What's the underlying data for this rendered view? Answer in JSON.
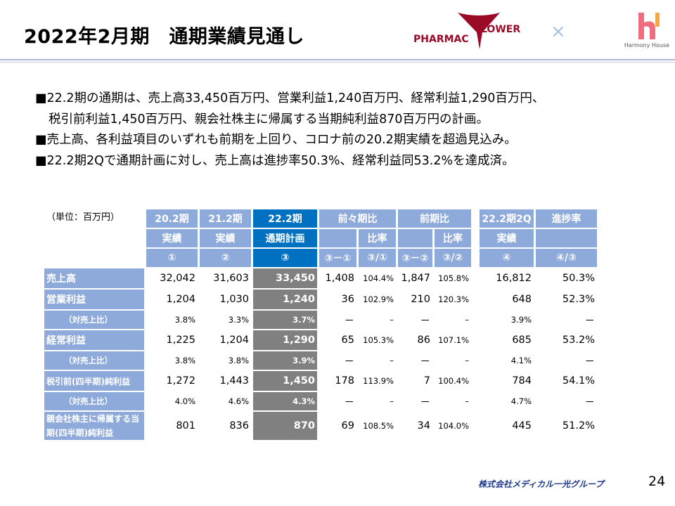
{
  "header": {
    "title": "2022年2月期　通期業績見通し",
    "logo_left": {
      "part1": "PHARMAC",
      "part2": "LOWER"
    },
    "times": "×",
    "logo_right": {
      "text": "Harmony House"
    }
  },
  "bullets": [
    "■22.2期の通期は、売上高33,450百万円、営業利益1,240百万円、経常利益1,290百万円、",
    "税引前利益1,450百万円、親会社株主に帰属する当期純利益870百万円の計画。",
    "■売上高、各利益項目のいずれも前期を上回り、コロナ前の20.2期実績を超過見込み。",
    "■22.2期2Qで通期計画に対し、売上高は進捗率50.3%、経常利益同53.2%を達成済。"
  ],
  "table": {
    "unit": "（単位：百万円）",
    "h1": [
      "20.2期",
      "21.2期",
      "22.2期",
      "前々期比",
      "前期比",
      "22.2期2Q",
      "進捗率"
    ],
    "h2": [
      "実績",
      "実績",
      "通期計画",
      "比率",
      "比率",
      "実績"
    ],
    "h3": [
      "①",
      "②",
      "③",
      "③－①",
      "③/①",
      "③－②",
      "③/②",
      "④",
      "④/③"
    ],
    "rows": [
      {
        "label": "売上高",
        "v": [
          "32,042",
          "31,603",
          "33,450",
          "1,408",
          "104.4%",
          "1,847",
          "105.8%",
          "16,812",
          "50.3%"
        ]
      },
      {
        "label": "営業利益",
        "v": [
          "1,204",
          "1,030",
          "1,240",
          "36",
          "102.9%",
          "210",
          "120.3%",
          "648",
          "52.3%"
        ]
      },
      {
        "label": "（対売上比）",
        "sub": true,
        "v": [
          "3.8%",
          "3.3%",
          "3.7%",
          "－",
          "–",
          "－",
          "–",
          "3.9%",
          "－"
        ]
      },
      {
        "label": "経常利益",
        "v": [
          "1,225",
          "1,204",
          "1,290",
          "65",
          "105.3%",
          "86",
          "107.1%",
          "685",
          "53.2%"
        ]
      },
      {
        "label": "（対売上比）",
        "sub": true,
        "v": [
          "3.8%",
          "3.8%",
          "3.9%",
          "－",
          "–",
          "－",
          "–",
          "4.1%",
          "－"
        ]
      },
      {
        "label": "税引前(四半期)純利益",
        "v": [
          "1,272",
          "1,443",
          "1,450",
          "178",
          "113.9%",
          "7",
          "100.4%",
          "784",
          "54.1%"
        ]
      },
      {
        "label": "（対売上比）",
        "sub": true,
        "v": [
          "4.0%",
          "4.6%",
          "4.3%",
          "－",
          "–",
          "－",
          "–",
          "4.7%",
          "－"
        ]
      },
      {
        "label": "親会社株主に帰属する当期(四半期)純利益",
        "v": [
          "801",
          "836",
          "870",
          "69",
          "108.5%",
          "34",
          "104.0%",
          "445",
          "51.2%"
        ]
      }
    ]
  },
  "footer": {
    "company": "株式会社メディカル一光グループ",
    "page": "24"
  }
}
